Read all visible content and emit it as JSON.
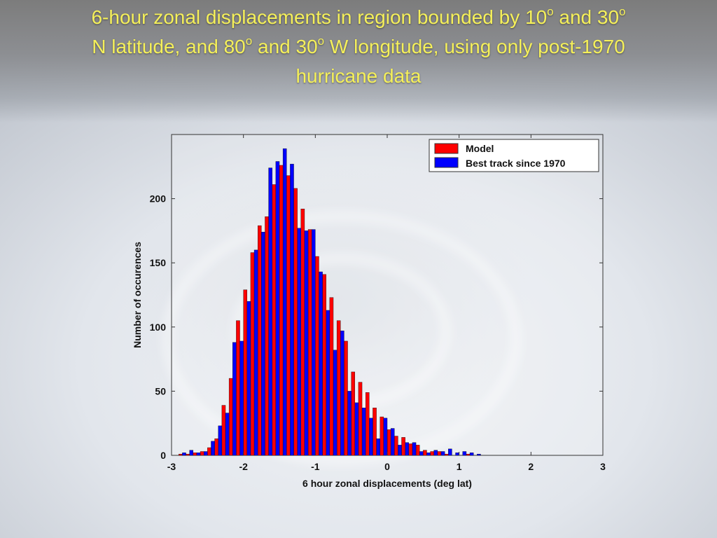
{
  "slide": {
    "title_line1": "6-hour zonal displacements in region bounded by 10",
    "title_sup1": "o",
    "title_mid1": " and 30",
    "title_sup2": "o",
    "title_line2a": "N latitude, and 80",
    "title_sup3": "o",
    "title_mid2": " and 30",
    "title_sup4": "o",
    "title_line2b": " W longitude, using only post-1970",
    "title_line3": "hurricane data",
    "title_color": "#f5f05a"
  },
  "chart_data": {
    "type": "bar",
    "xlabel": "6 hour zonal displacements (deg lat)",
    "ylabel": "Number of occurences",
    "xlim": [
      -3,
      3
    ],
    "ylim": [
      0,
      250
    ],
    "xticks": [
      -3,
      -2,
      -1,
      0,
      1,
      2,
      3
    ],
    "yticks": [
      0,
      50,
      100,
      150,
      200
    ],
    "grid": false,
    "legend_position": "top-right",
    "bin_width": 0.1,
    "x": [
      -2.95,
      -2.85,
      -2.75,
      -2.65,
      -2.55,
      -2.45,
      -2.35,
      -2.25,
      -2.15,
      -2.05,
      -1.95,
      -1.85,
      -1.75,
      -1.65,
      -1.55,
      -1.45,
      -1.35,
      -1.25,
      -1.15,
      -1.05,
      -0.95,
      -0.85,
      -0.75,
      -0.65,
      -0.55,
      -0.45,
      -0.35,
      -0.25,
      -0.15,
      -0.05,
      0.05,
      0.15,
      0.25,
      0.35,
      0.45,
      0.55,
      0.65,
      0.75,
      0.85,
      0.95,
      1.05,
      1.15,
      1.25,
      1.35,
      1.45,
      1.55,
      1.65,
      1.75,
      1.85,
      1.95,
      2.05,
      2.15,
      2.25,
      2.35,
      2.45,
      2.55,
      2.65,
      2.75,
      2.85
    ],
    "series": [
      {
        "name": "Model",
        "color": "#ff0000",
        "values": [
          0,
          1,
          1,
          2,
          3,
          6,
          13,
          39,
          60,
          105,
          129,
          158,
          179,
          186,
          211,
          226,
          218,
          208,
          192,
          176,
          155,
          141,
          123,
          105,
          89,
          65,
          57,
          49,
          37,
          30,
          20,
          15,
          14,
          9,
          8,
          4,
          3,
          3,
          1,
          0,
          0,
          1,
          0,
          0,
          0,
          0,
          0,
          0,
          0,
          0,
          0,
          0,
          0,
          0,
          0,
          0,
          0,
          0,
          0
        ]
      },
      {
        "name": "Best track since 1970",
        "color": "#0000ff",
        "values": [
          0,
          2,
          4,
          2,
          3,
          11,
          23,
          33,
          88,
          89,
          120,
          160,
          174,
          224,
          229,
          239,
          227,
          177,
          175,
          176,
          143,
          113,
          82,
          97,
          50,
          41,
          37,
          29,
          13,
          29,
          21,
          8,
          10,
          10,
          3,
          2,
          4,
          3,
          5,
          2,
          3,
          2,
          1,
          0,
          0,
          0,
          0,
          0,
          0,
          0,
          0,
          0,
          0,
          0,
          0,
          0,
          0,
          0,
          0
        ]
      }
    ]
  }
}
